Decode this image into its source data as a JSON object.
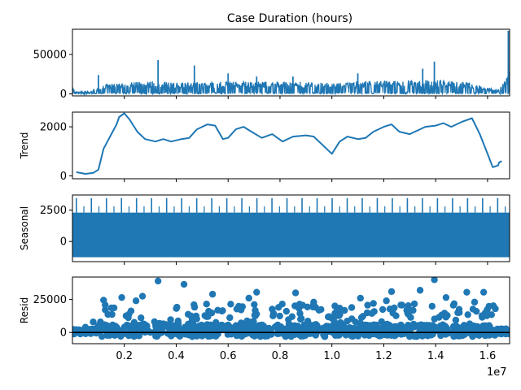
{
  "figure": {
    "title": "Case Duration (hours)",
    "x_offset_label": "1e7",
    "series_color": "#1f77b4"
  },
  "chart_data": [
    {
      "type": "line",
      "name": "observed",
      "ylabel": "",
      "xlim": [
        0,
        16850000
      ],
      "ylim": [
        -2500,
        82000
      ],
      "y_ticks": [
        0,
        50000
      ],
      "y_tick_labels": [
        "0",
        "50000"
      ],
      "profile_x": [
        0,
        100000,
        700000,
        1100000,
        1500000,
        2000000,
        3300000,
        4000000,
        6000000,
        8000000,
        10000000,
        12000000,
        14000000,
        15300000,
        16400000,
        16800000,
        16850000
      ],
      "profile_y": [
        8000,
        2000,
        2500,
        9000,
        11000,
        12000,
        14000,
        12000,
        13000,
        13000,
        12500,
        14000,
        15000,
        12000,
        4000,
        20000,
        40000
      ],
      "spikes": [
        [
          1000000,
          24000
        ],
        [
          3300000,
          43000
        ],
        [
          4700000,
          36000
        ],
        [
          6000000,
          26000
        ],
        [
          7100000,
          22000
        ],
        [
          8500000,
          22000
        ],
        [
          11000000,
          26000
        ],
        [
          13500000,
          32000
        ],
        [
          13950000,
          41000
        ],
        [
          16800000,
          80000
        ]
      ]
    },
    {
      "type": "line",
      "name": "trend",
      "ylabel": "Trend",
      "xlim": [
        0,
        16850000
      ],
      "ylim": [
        -120,
        2600
      ],
      "y_ticks": [
        0,
        2000
      ],
      "y_tick_labels": [
        "0",
        "2000"
      ],
      "x": [
        150000,
        500000,
        800000,
        1000000,
        1200000,
        1500000,
        1700000,
        1800000,
        2000000,
        2200000,
        2500000,
        2800000,
        3200000,
        3500000,
        3800000,
        4200000,
        4500000,
        4800000,
        5200000,
        5500000,
        5800000,
        6000000,
        6300000,
        6600000,
        6900000,
        7300000,
        7700000,
        8100000,
        8500000,
        9000000,
        9300000,
        9700000,
        10000000,
        10300000,
        10600000,
        11000000,
        11300000,
        11600000,
        12000000,
        12300000,
        12600000,
        13000000,
        13300000,
        13600000,
        14000000,
        14300000,
        14600000,
        15000000,
        15400000,
        15700000,
        16000000,
        16200000,
        16400000,
        16450000,
        16550000
      ],
      "y": [
        150,
        80,
        120,
        250,
        1100,
        1700,
        2100,
        2400,
        2550,
        2300,
        1800,
        1500,
        1400,
        1500,
        1400,
        1500,
        1550,
        1900,
        2100,
        2050,
        1500,
        1550,
        1900,
        2000,
        1800,
        1550,
        1700,
        1400,
        1600,
        1650,
        1600,
        1200,
        900,
        1400,
        1600,
        1500,
        1550,
        1800,
        2000,
        2100,
        1800,
        1700,
        1850,
        2000,
        2050,
        2150,
        2000,
        2200,
        2350,
        1700,
        900,
        350,
        420,
        550,
        600
      ]
    },
    {
      "type": "area",
      "name": "seasonal",
      "ylabel": "Seasonal",
      "xlim": [
        0,
        16850000
      ],
      "ylim": [
        -1600,
        3700
      ],
      "y_ticks": [
        0,
        2500
      ],
      "y_tick_labels": [
        "0",
        "2500"
      ],
      "band_low": -1250,
      "band_high": 2300,
      "peak_value": 3450,
      "peak_spacing": 580000,
      "peak_start": 150000
    },
    {
      "type": "scatter",
      "name": "resid",
      "ylabel": "Resid",
      "xlim": [
        0,
        16850000
      ],
      "ylim": [
        -8500,
        42000
      ],
      "y_ticks": [
        0,
        25000
      ],
      "y_tick_labels": [
        "0",
        "25000"
      ],
      "marker": "circle",
      "points": [
        [
          3300000,
          39000
        ],
        [
          4300000,
          36500
        ],
        [
          5400000,
          29000
        ],
        [
          7100000,
          30500
        ],
        [
          8600000,
          30000
        ],
        [
          12300000,
          31000
        ],
        [
          13400000,
          32000
        ],
        [
          13950000,
          40000
        ],
        [
          15200000,
          30500
        ],
        [
          15850000,
          30500
        ],
        [
          1200000,
          24500
        ],
        [
          1900000,
          26500
        ],
        [
          2450000,
          24000
        ],
        [
          2700000,
          27500
        ],
        [
          6100000,
          21500
        ],
        [
          6800000,
          26000
        ],
        [
          9300000,
          23000
        ],
        [
          10300000,
          18500
        ],
        [
          11100000,
          26000
        ],
        [
          11600000,
          22000
        ],
        [
          12100000,
          24000
        ],
        [
          14400000,
          26500
        ],
        [
          15500000,
          23000
        ],
        [
          16300000,
          18000
        ],
        [
          800000,
          8000
        ],
        [
          500000,
          4000
        ],
        [
          9900000,
          12000
        ],
        [
          10100000,
          8000
        ]
      ]
    }
  ],
  "x_axis": {
    "ticks": [
      2000000,
      4000000,
      6000000,
      8000000,
      10000000,
      12000000,
      14000000,
      16000000
    ],
    "tick_labels": [
      "0.2",
      "0.4",
      "0.6",
      "0.8",
      "1.0",
      "1.2",
      "1.4",
      "1.6"
    ]
  }
}
